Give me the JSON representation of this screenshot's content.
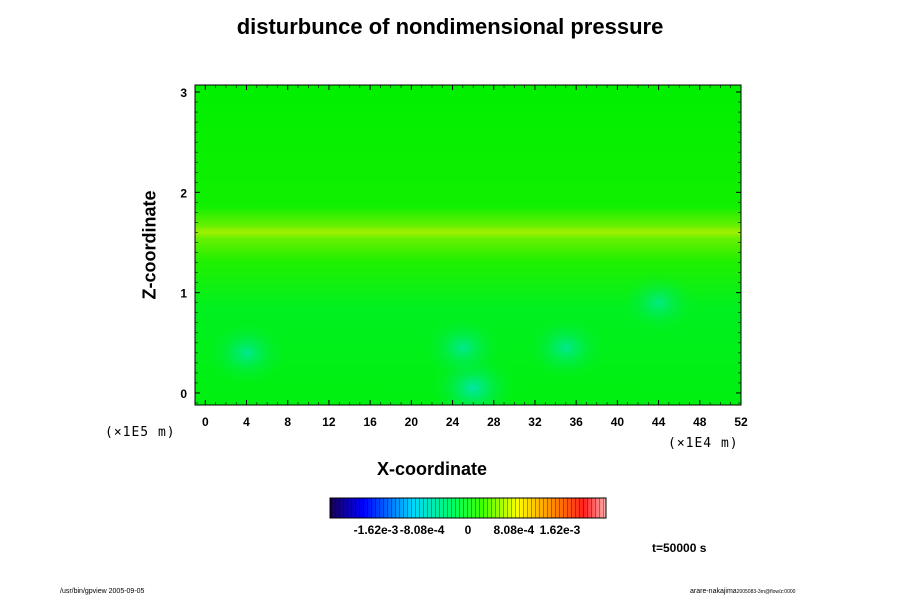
{
  "chart_data": {
    "type": "heatmap",
    "title": "disturbunce of nondimensional pressure",
    "xlabel": "X-coordinate",
    "ylabel": "Z-coordinate",
    "x_scale_label": "(×1E4 m)",
    "y_scale_label": "(×1E5 m)",
    "xlim": [
      -1,
      52
    ],
    "ylim": [
      -0.12,
      3.07
    ],
    "x_ticks": [
      "0",
      "4",
      "8",
      "12",
      "16",
      "20",
      "24",
      "28",
      "32",
      "36",
      "40",
      "44",
      "48",
      "52"
    ],
    "y_ticks": [
      "0",
      "1",
      "2",
      "3"
    ],
    "colorbar": {
      "tick_labels": [
        "-1.62e-3",
        "-8.08e-4",
        "0",
        "8.08e-4",
        "1.62e-3"
      ],
      "range": [
        -0.00243,
        0.00243
      ]
    },
    "field_description_values": {
      "background": 0,
      "bright_band_z": 1.75,
      "bright_band_value": 0.00045,
      "low_regions": [
        {
          "x": 4,
          "z": 0.4,
          "value": -0.00055
        },
        {
          "x": 26,
          "z": 0.05,
          "value": -0.00085
        },
        {
          "x": 25,
          "z": 0.45,
          "value": -0.00055
        },
        {
          "x": 35,
          "z": 0.45,
          "value": -0.00055
        },
        {
          "x": 44,
          "z": 0.9,
          "value": -0.0004
        }
      ]
    },
    "time_label": "t=50000 s"
  },
  "footer": {
    "left": "/usr/bin/gpview 2005-09-05",
    "right_main": "arare-nakajima",
    "right_small": "2005083-3rn@flow/z:0000"
  },
  "colors": {
    "field": "#00ee00",
    "band": "#88f000",
    "low": "#00e6a0"
  }
}
